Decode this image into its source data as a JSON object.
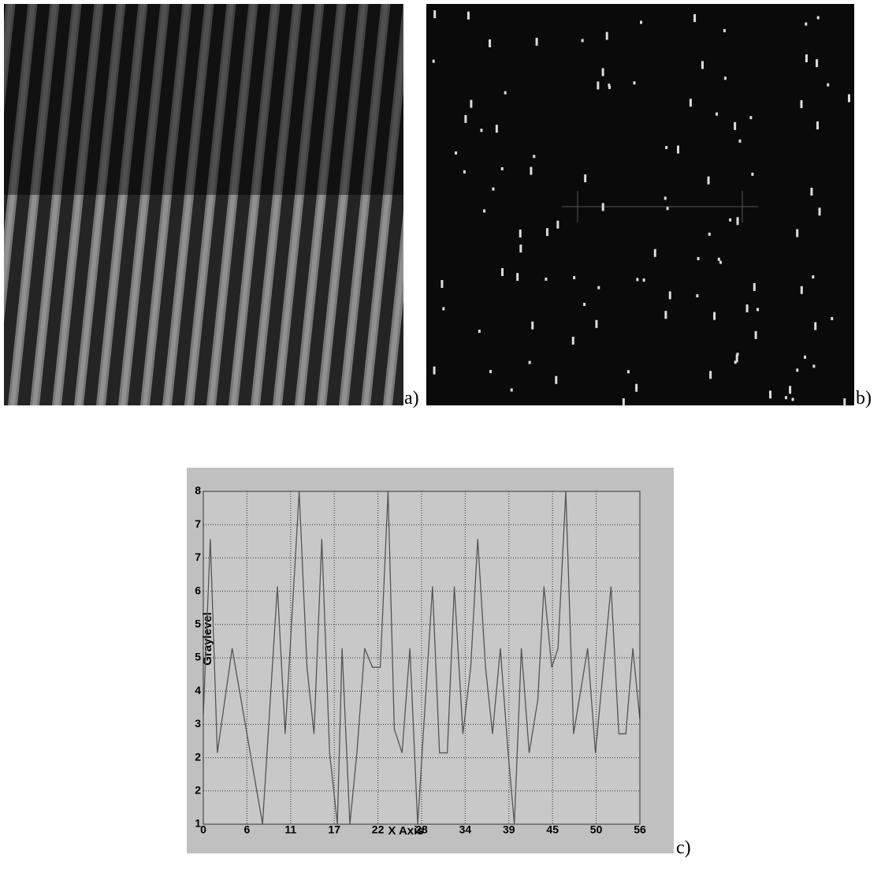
{
  "panels": {
    "a": "a)",
    "b": "b)",
    "c": "c)"
  },
  "chart_data": {
    "type": "line",
    "xlabel": "X Axis",
    "ylabel": "Graylevel",
    "color": "#555555",
    "grid": true,
    "x": [
      0,
      0.9,
      1.8,
      3.7,
      7.6,
      9.5,
      10.5,
      12.3,
      13.3,
      14.2,
      15.2,
      16.2,
      17.2,
      17.8,
      18.8,
      19.7,
      20.7,
      21.7,
      22.7,
      23.7,
      24.5,
      25.5,
      26.5,
      27.5,
      29.4,
      30.3,
      31.3,
      32.2,
      33.3,
      34.3,
      35.2,
      36.2,
      37.1,
      38.1,
      39.1,
      39.9,
      40.8,
      41.8,
      42.9,
      43.7,
      44.7,
      45.5,
      46.5,
      47.5,
      49.3,
      50.3,
      52.3,
      53.3,
      54.2,
      55.1,
      56
    ],
    "values": [
      3.3,
      7.0,
      2.5,
      4.7,
      1.0,
      6.0,
      2.9,
      8.0,
      4.3,
      2.9,
      7.0,
      2.5,
      1.0,
      4.7,
      1.0,
      2.5,
      4.7,
      4.3,
      4.3,
      8.0,
      3.0,
      2.5,
      4.7,
      1.0,
      6.0,
      2.5,
      2.5,
      6.0,
      2.9,
      4.3,
      7.0,
      4.3,
      2.9,
      4.7,
      2.5,
      1.0,
      4.7,
      2.5,
      3.6,
      6.0,
      4.3,
      4.7,
      8.0,
      2.9,
      4.7,
      2.5,
      6.0,
      2.9,
      2.9,
      4.7,
      3.2
    ],
    "xlim": [
      0,
      56
    ],
    "xticks": [
      0,
      {
        "value": 5.6,
        "label": "6"
      },
      {
        "value": 11.2,
        "label": "11"
      },
      {
        "value": 16.8,
        "label": "17"
      },
      {
        "value": 22.4,
        "label": "22"
      },
      28,
      {
        "value": 33.6,
        "label": "34"
      },
      {
        "value": 39.2,
        "label": "39"
      },
      {
        "value": 44.8,
        "label": "45"
      },
      {
        "value": 50.4,
        "label": "50"
      },
      56
    ],
    "ylim": [
      1,
      8
    ],
    "yticks": [
      1,
      {
        "value": 1.7,
        "label": "2"
      },
      {
        "value": 2.4,
        "label": "2"
      },
      {
        "value": 3.1,
        "label": "3"
      },
      {
        "value": 3.8,
        "label": "4"
      },
      {
        "value": 4.5,
        "label": "5"
      },
      {
        "value": 5.2,
        "label": "5"
      },
      {
        "value": 5.9,
        "label": "6"
      },
      {
        "value": 6.6,
        "label": "7"
      },
      {
        "value": 7.3,
        "label": "7"
      },
      8
    ]
  }
}
